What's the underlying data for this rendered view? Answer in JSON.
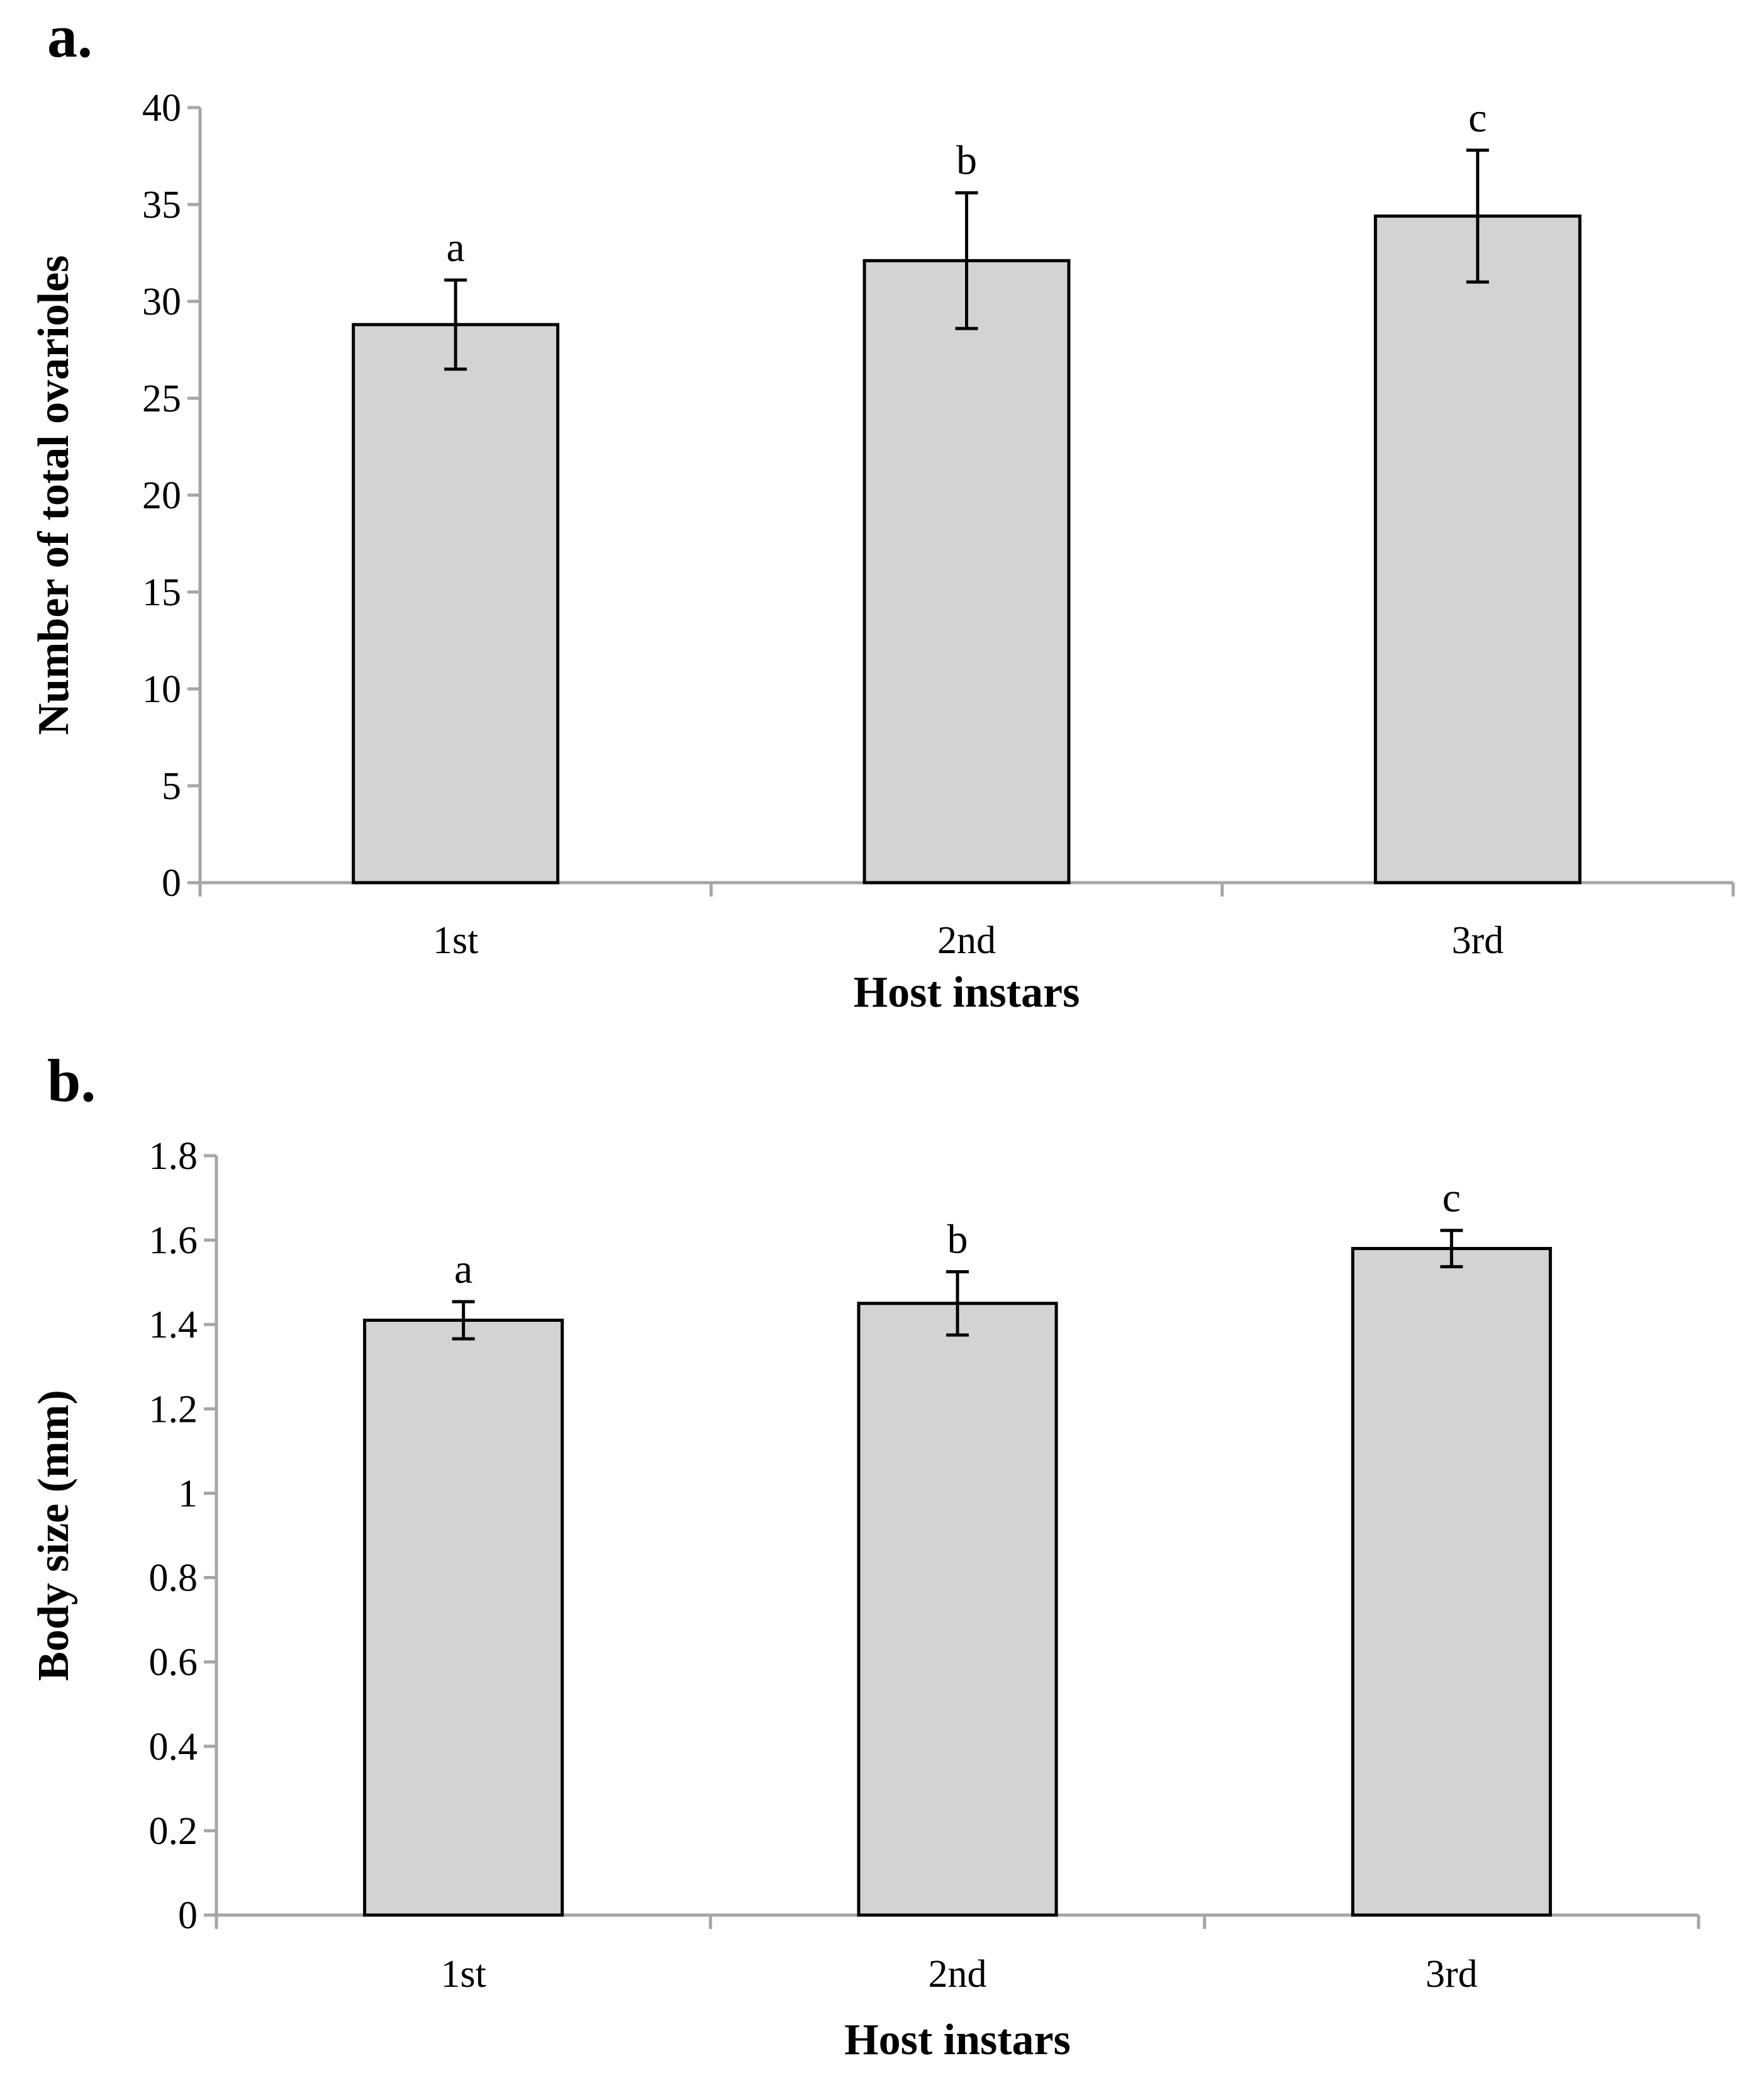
{
  "chart_data": [
    {
      "type": "bar",
      "panel_label": "a.",
      "categories": [
        "1st",
        "2nd",
        "3rd"
      ],
      "values": [
        28.8,
        32.1,
        34.4
      ],
      "errors": [
        2.3,
        3.5,
        3.4
      ],
      "significance": [
        "a",
        "b",
        "c"
      ],
      "xlabel": "Host instars",
      "ylabel": "Number of total ovarioles",
      "ylim": [
        0,
        40
      ],
      "yticks": [
        0,
        5,
        10,
        15,
        20,
        25,
        30,
        35,
        40
      ],
      "ytick_labels": [
        "0",
        "5",
        "10",
        "15",
        "20",
        "25",
        "30",
        "35",
        "40"
      ],
      "bar_color": "#d3d3d3"
    },
    {
      "type": "bar",
      "panel_label": "b.",
      "categories": [
        "1st",
        "2nd",
        "3rd"
      ],
      "values": [
        1.41,
        1.45,
        1.58
      ],
      "errors": [
        0.044,
        0.075,
        0.043
      ],
      "significance": [
        "a",
        "b",
        "c"
      ],
      "xlabel": "Host instars",
      "ylabel": "Body size (mm)",
      "ylim": [
        0,
        1.8
      ],
      "yticks": [
        0,
        0.2,
        0.4,
        0.6,
        0.8,
        1,
        1.2,
        1.4,
        1.6,
        1.8
      ],
      "ytick_labels": [
        "0",
        "0.2",
        "0.4",
        "0.6",
        "0.8",
        "1",
        "1.2",
        "1.4",
        "1.6",
        "1.8"
      ],
      "bar_color": "#d3d3d3"
    }
  ]
}
